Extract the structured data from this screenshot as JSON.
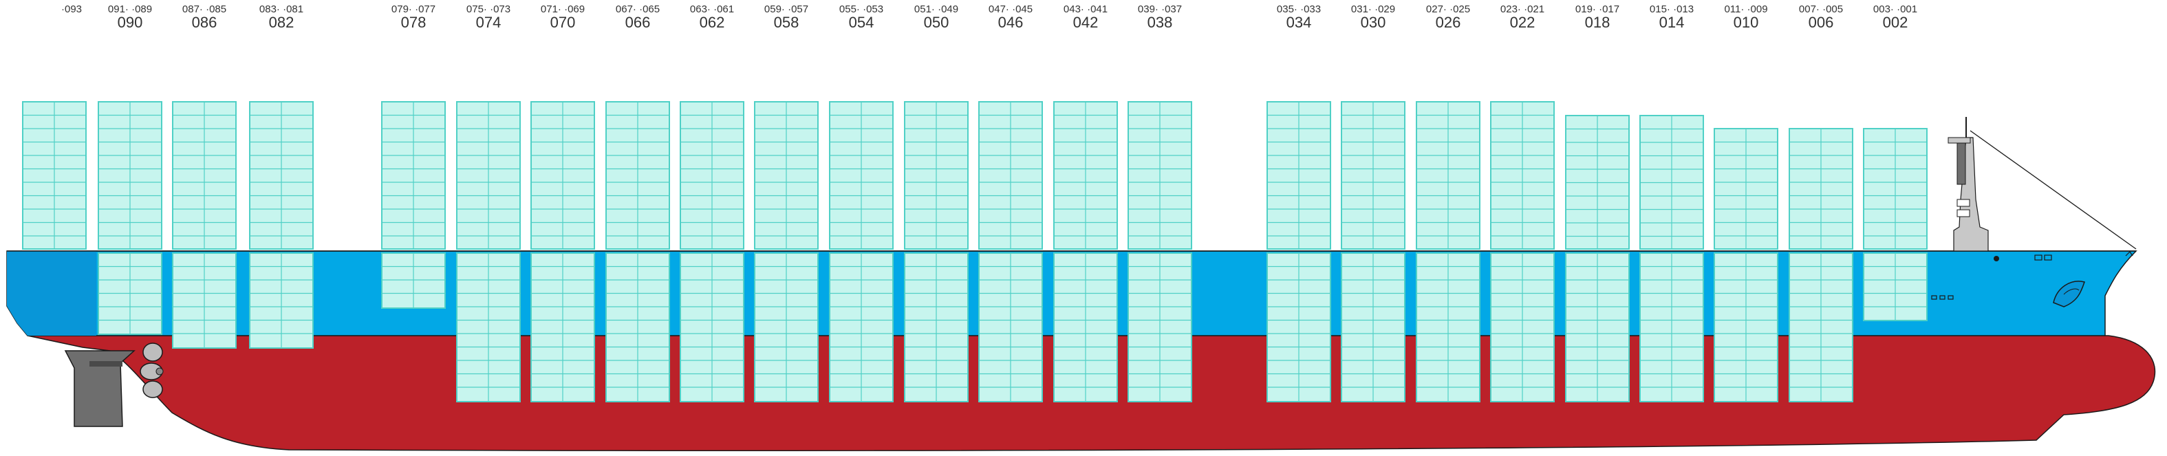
{
  "colors": {
    "hull_red": "#BB2129",
    "hull_blue": "#02A8E6",
    "hull_blue_dark": "#0896D8",
    "container_fill": "#C7F5EE",
    "container_stroke": "#4FD0C6",
    "superstructure": "#C8C8C8",
    "rudder": "#6E6E6E",
    "outline": "#1A1A1A"
  },
  "icons": [
    "propeller-icon",
    "rudder-icon",
    "mast-icon",
    "anchor-icon",
    "bow-logo-icon"
  ],
  "bays": [
    {
      "odd": "093",
      "even": "",
      "hold_tiers": 0,
      "hold_depth": "none"
    },
    {
      "odd": "091",
      "pair": "089",
      "even": "090"
    },
    {
      "odd": "087",
      "pair": "085",
      "even": "086"
    },
    {
      "odd": "083",
      "pair": "081",
      "even": "082"
    },
    {
      "odd": "079",
      "pair": "077",
      "even": "078"
    },
    {
      "odd": "075",
      "pair": "073",
      "even": "074"
    },
    {
      "odd": "071",
      "pair": "069",
      "even": "070"
    },
    {
      "odd": "067",
      "pair": "065",
      "even": "066"
    },
    {
      "odd": "063",
      "pair": "061",
      "even": "062"
    },
    {
      "odd": "059",
      "pair": "057",
      "even": "058"
    },
    {
      "odd": "055",
      "pair": "053",
      "even": "054"
    },
    {
      "odd": "051",
      "pair": "049",
      "even": "050"
    },
    {
      "odd": "047",
      "pair": "045",
      "even": "046"
    },
    {
      "odd": "043",
      "pair": "041",
      "even": "042"
    },
    {
      "odd": "039",
      "pair": "037",
      "even": "038"
    },
    {
      "odd": "035",
      "pair": "033",
      "even": "034"
    },
    {
      "odd": "031",
      "pair": "029",
      "even": "030"
    },
    {
      "odd": "027",
      "pair": "025",
      "even": "026"
    },
    {
      "odd": "023",
      "pair": "021",
      "even": "022"
    },
    {
      "odd": "019",
      "pair": "017",
      "even": "018"
    },
    {
      "odd": "015",
      "pair": "013",
      "even": "014"
    },
    {
      "odd": "011",
      "pair": "009",
      "even": "010"
    },
    {
      "odd": "007",
      "pair": "005",
      "even": "006"
    },
    {
      "odd": "003",
      "pair": "001",
      "even": "002"
    }
  ],
  "labels": {
    "b0": {
      "pair": "·093",
      "even": ""
    },
    "b1": {
      "pair": "091·   ·089",
      "even": "090"
    },
    "b2": {
      "pair": "087·   ·085",
      "even": "086"
    },
    "b3": {
      "pair": "083·   ·081",
      "even": "082"
    },
    "b4": {
      "pair": "079·   ·077",
      "even": "078"
    },
    "b5": {
      "pair": "075·   ·073",
      "even": "074"
    },
    "b6": {
      "pair": "071·   ·069",
      "even": "070"
    },
    "b7": {
      "pair": "067·   ·065",
      "even": "066"
    },
    "b8": {
      "pair": "063·   ·061",
      "even": "062"
    },
    "b9": {
      "pair": "059·   ·057",
      "even": "058"
    },
    "b10": {
      "pair": "055·   ·053",
      "even": "054"
    },
    "b11": {
      "pair": "051·   ·049",
      "even": "050"
    },
    "b12": {
      "pair": "047·   ·045",
      "even": "046"
    },
    "b13": {
      "pair": "043·   ·041",
      "even": "042"
    },
    "b14": {
      "pair": "039·   ·037",
      "even": "038"
    },
    "b15": {
      "pair": "035·   ·033",
      "even": "034"
    },
    "b16": {
      "pair": "031·   ·029",
      "even": "030"
    },
    "b17": {
      "pair": "027·   ·025",
      "even": "026"
    },
    "b18": {
      "pair": "023·   ·021",
      "even": "022"
    },
    "b19": {
      "pair": "019·   ·017",
      "even": "018"
    },
    "b20": {
      "pair": "015·   ·013",
      "even": "014"
    },
    "b21": {
      "pair": "011·   ·009",
      "even": "010"
    },
    "b22": {
      "pair": "007·   ·005",
      "even": "006"
    },
    "b23": {
      "pair": "003·   ·001",
      "even": "002"
    }
  }
}
